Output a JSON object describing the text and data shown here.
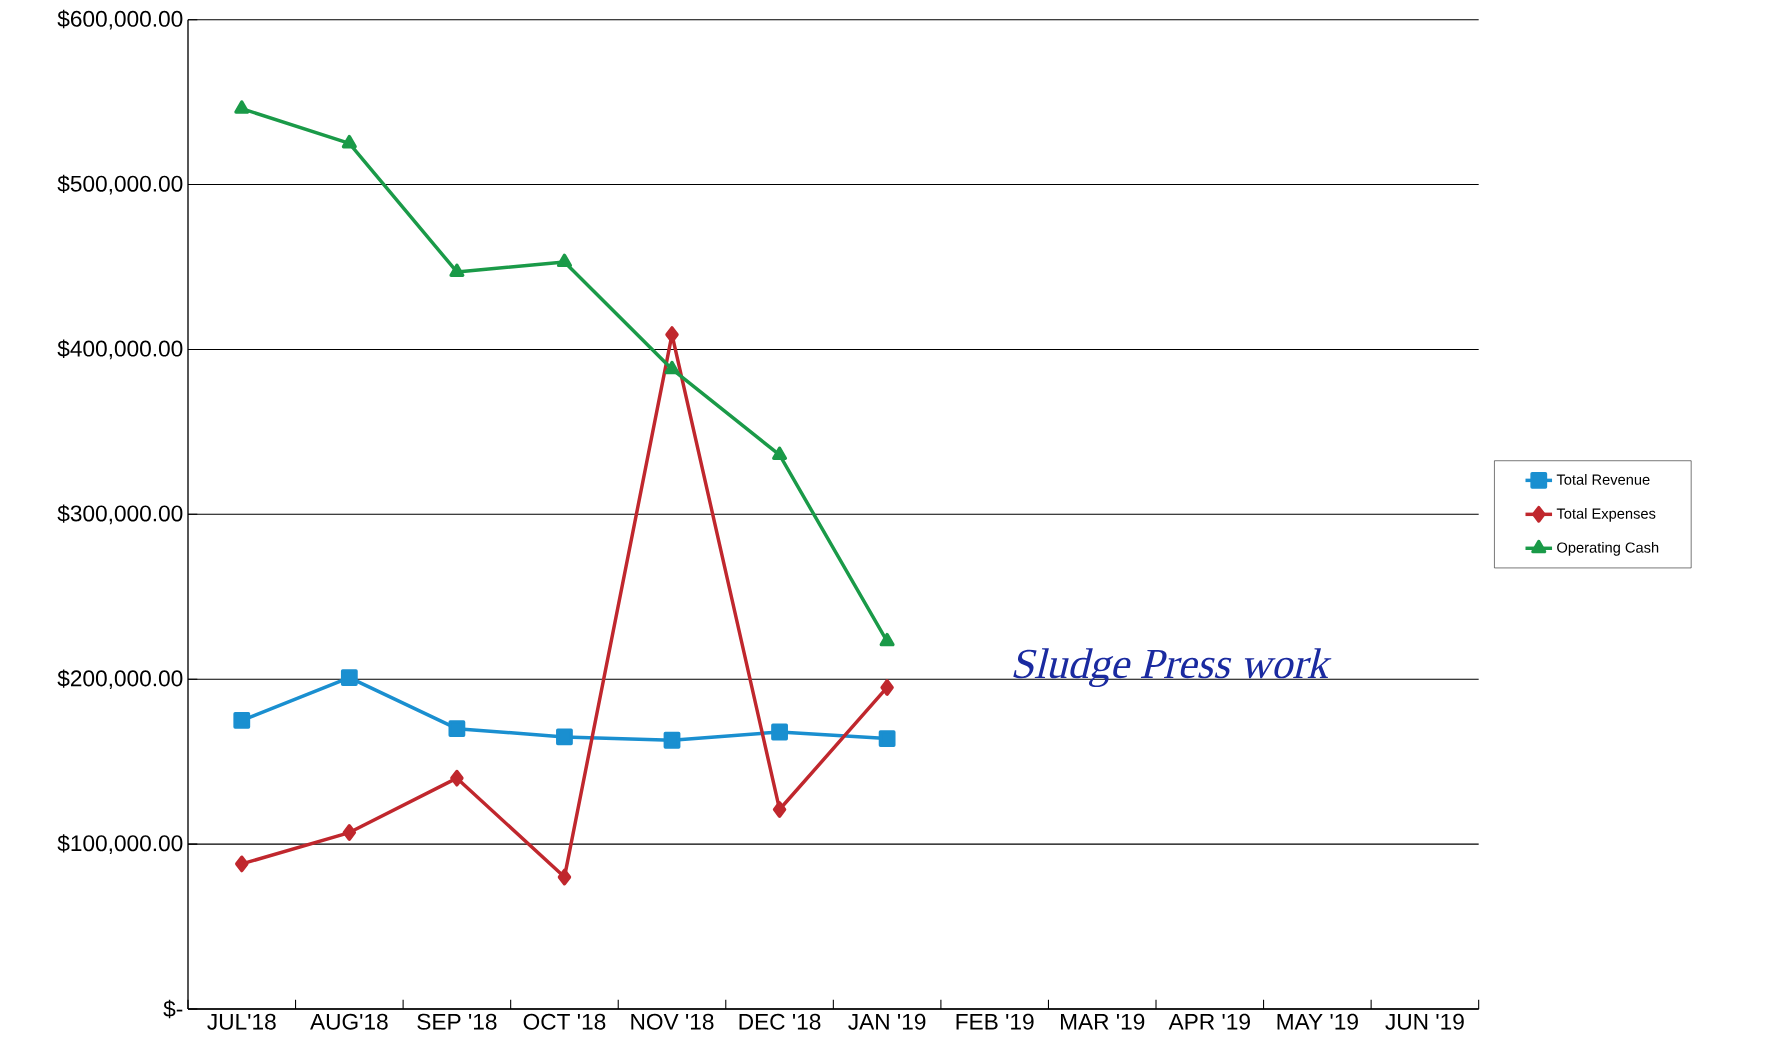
{
  "chart_data": {
    "type": "line",
    "categories": [
      "JUL'18",
      "AUG'18",
      "SEP '18",
      "OCT '18",
      "NOV '18",
      "DEC '18",
      "JAN '19",
      "FEB '19",
      "MAR '19",
      "APR '19",
      "MAY '19",
      "JUN '19"
    ],
    "series": [
      {
        "name": "Total Revenue",
        "color": "#1a8fd0",
        "marker": "square",
        "values": [
          175000,
          201000,
          170000,
          165000,
          163000,
          168000,
          164000,
          null,
          null,
          null,
          null,
          null
        ]
      },
      {
        "name": "Total Expenses",
        "color": "#c0272d",
        "marker": "diamond",
        "values": [
          88000,
          107000,
          140000,
          80000,
          409000,
          121000,
          195000,
          null,
          null,
          null,
          null,
          null
        ]
      },
      {
        "name": "Operating Cash",
        "color": "#1a9a48",
        "marker": "triangle",
        "values": [
          546000,
          525000,
          447000,
          453000,
          388000,
          336000,
          223000,
          null,
          null,
          null,
          null,
          null
        ]
      }
    ],
    "ylim": [
      0,
      600000
    ],
    "yticks": [
      {
        "value": 0,
        "label": "$-"
      },
      {
        "value": 100000,
        "label": "$100,000.00"
      },
      {
        "value": 200000,
        "label": "$200,000.00"
      },
      {
        "value": 300000,
        "label": "$300,000.00"
      },
      {
        "value": 400000,
        "label": "$400,000.00"
      },
      {
        "value": 500000,
        "label": "$500,000.00"
      },
      {
        "value": 600000,
        "label": "$600,000.00"
      }
    ],
    "grid": "y",
    "legend": "right",
    "annotations": [
      "Sludge Press work"
    ]
  }
}
